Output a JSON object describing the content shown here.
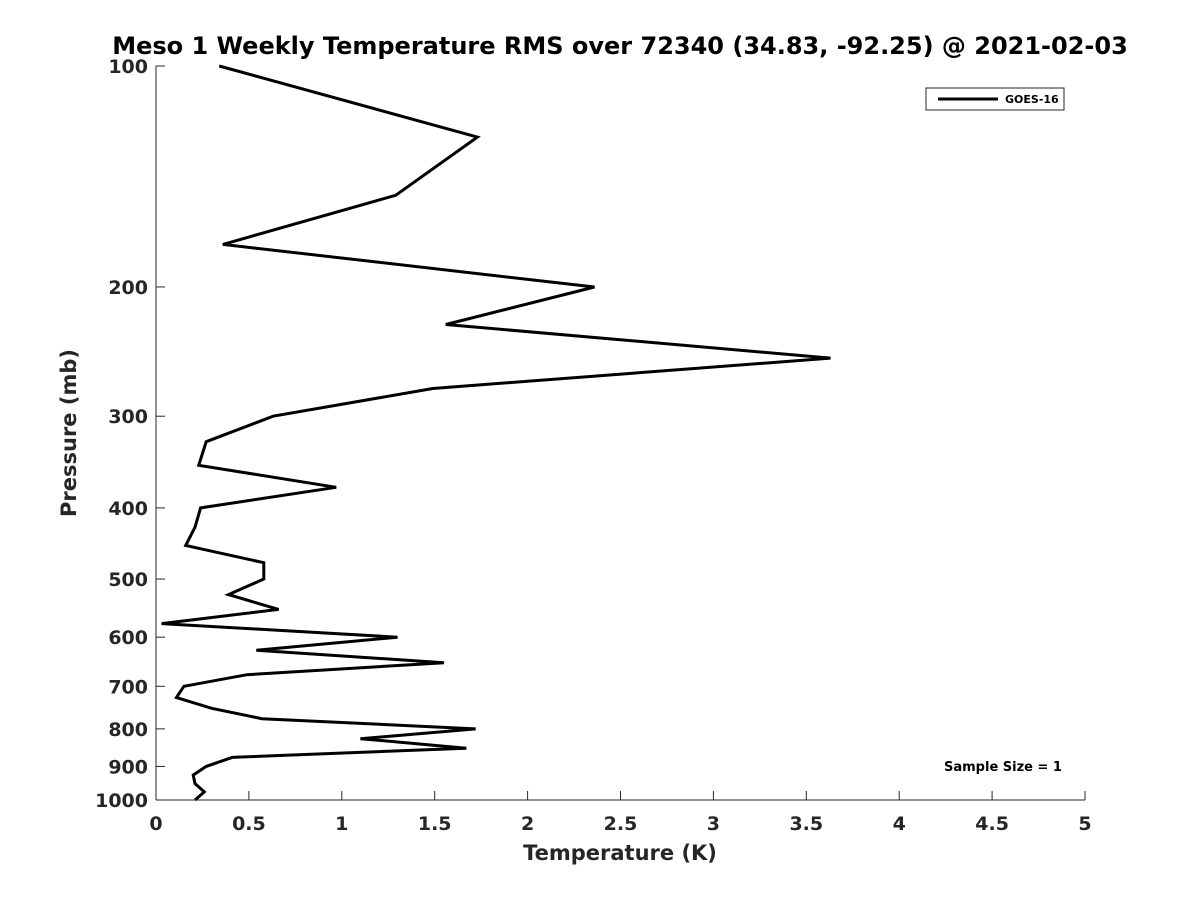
{
  "chart_data": {
    "type": "line",
    "title": "Meso 1 Weekly Temperature RMS over 72340 (34.83, -92.25) @ 2021-02-03",
    "xlabel": "Temperature (K)",
    "ylabel": "Pressure (mb)",
    "xlim": [
      0,
      5
    ],
    "ylim": [
      100,
      1000
    ],
    "yscale": "log",
    "y_reversed": true,
    "xticks": [
      0,
      0.5,
      1,
      1.5,
      2,
      2.5,
      3,
      3.5,
      4,
      4.5,
      5
    ],
    "xtick_labels": [
      "0",
      "0.5",
      "1",
      "1.5",
      "2",
      "2.5",
      "3",
      "3.5",
      "4",
      "4.5",
      "5"
    ],
    "yticks": [
      100,
      200,
      300,
      400,
      500,
      600,
      700,
      800,
      900,
      1000
    ],
    "ytick_labels": [
      "100",
      "200",
      "300",
      "400",
      "500",
      "600",
      "700",
      "800",
      "900",
      "1000"
    ],
    "grid": false,
    "legend_position": "top-right",
    "series": [
      {
        "name": "GOES-16",
        "color": "#000000",
        "points": [
          {
            "x": 0.34,
            "p": 100
          },
          {
            "x": 1.73,
            "p": 125
          },
          {
            "x": 1.29,
            "p": 150
          },
          {
            "x": 0.36,
            "p": 175
          },
          {
            "x": 2.36,
            "p": 200
          },
          {
            "x": 1.56,
            "p": 225
          },
          {
            "x": 3.63,
            "p": 250
          },
          {
            "x": 1.49,
            "p": 275
          },
          {
            "x": 0.63,
            "p": 300
          },
          {
            "x": 0.27,
            "p": 325
          },
          {
            "x": 0.23,
            "p": 350
          },
          {
            "x": 0.97,
            "p": 375
          },
          {
            "x": 0.24,
            "p": 400
          },
          {
            "x": 0.21,
            "p": 425
          },
          {
            "x": 0.16,
            "p": 450
          },
          {
            "x": 0.58,
            "p": 475
          },
          {
            "x": 0.58,
            "p": 500
          },
          {
            "x": 0.39,
            "p": 525
          },
          {
            "x": 0.66,
            "p": 550
          },
          {
            "x": 0.03,
            "p": 575
          },
          {
            "x": 1.3,
            "p": 600
          },
          {
            "x": 0.54,
            "p": 625
          },
          {
            "x": 1.55,
            "p": 650
          },
          {
            "x": 0.49,
            "p": 675
          },
          {
            "x": 0.15,
            "p": 700
          },
          {
            "x": 0.11,
            "p": 725
          },
          {
            "x": 0.3,
            "p": 750
          },
          {
            "x": 0.57,
            "p": 775
          },
          {
            "x": 1.72,
            "p": 800
          },
          {
            "x": 1.1,
            "p": 825
          },
          {
            "x": 1.67,
            "p": 850
          },
          {
            "x": 0.41,
            "p": 875
          },
          {
            "x": 0.27,
            "p": 900
          },
          {
            "x": 0.2,
            "p": 925
          },
          {
            "x": 0.21,
            "p": 950
          },
          {
            "x": 0.26,
            "p": 975
          },
          {
            "x": 0.21,
            "p": 1000
          }
        ]
      }
    ],
    "annotations": [
      {
        "text": "Sample Size = 1",
        "position": "bottom-right"
      }
    ]
  }
}
